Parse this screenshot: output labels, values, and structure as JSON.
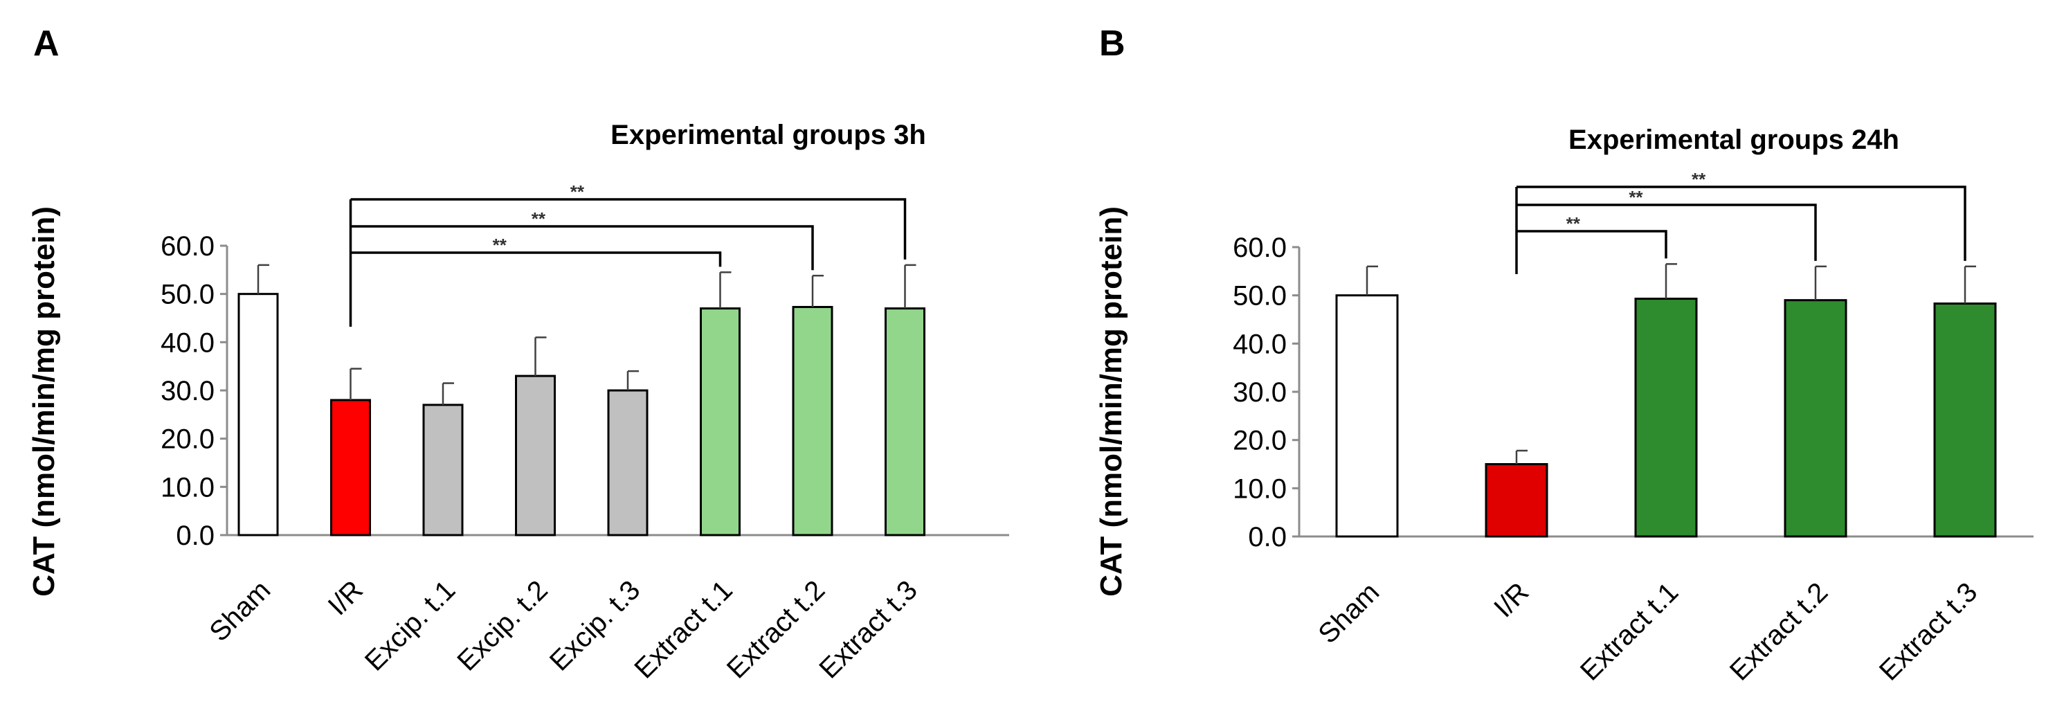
{
  "figure": {
    "panels": [
      {
        "letter": "A",
        "title": "Experimental groups 3h",
        "ylabel": "CAT (nmol/min/mg protein)",
        "yticks": [
          "0.0",
          "10.0",
          "20.0",
          "30.0",
          "40.0",
          "50.0",
          "60.0"
        ],
        "categories": [
          "Sham",
          "I/R",
          "Excip. t.1",
          "Excip. t.2",
          "Excip. t.3",
          "Extract t.1",
          "Extract t.2",
          "Extract t.3"
        ],
        "comparisons": [
          {
            "from": "I/R",
            "to": "Extract t.1",
            "label": "**"
          },
          {
            "from": "I/R",
            "to": "Extract t.2",
            "label": "**"
          },
          {
            "from": "I/R",
            "to": "Extract t.3",
            "label": "**"
          }
        ]
      },
      {
        "letter": "B",
        "title": "Experimental groups 24h",
        "ylabel": "CAT (nmol/min/mg protein)",
        "yticks": [
          "0.0",
          "10.0",
          "20.0",
          "30.0",
          "40.0",
          "50.0",
          "60.0"
        ],
        "categories": [
          "Sham",
          "I/R",
          "Extract t.1",
          "Extract t.2",
          "Extract t.3"
        ],
        "comparisons": [
          {
            "from": "I/R",
            "to": "Extract t.1",
            "label": "**"
          },
          {
            "from": "I/R",
            "to": "Extract t.2",
            "label": "**"
          },
          {
            "from": "I/R",
            "to": "Extract t.3",
            "label": "**"
          }
        ]
      }
    ]
  },
  "chart_data": [
    {
      "type": "bar",
      "title": "Experimental groups 3h",
      "xlabel": "",
      "ylabel": "CAT (nmol/min/mg protein)",
      "ylim": [
        0,
        60
      ],
      "grid": false,
      "categories": [
        "Sham",
        "I/R",
        "Excip. t.1",
        "Excip. t.2",
        "Excip. t.3",
        "Extract t.1",
        "Extract t.2",
        "Extract t.3"
      ],
      "values": [
        50.0,
        28.0,
        27.0,
        33.0,
        30.0,
        47.0,
        47.3,
        47.0
      ],
      "errors": [
        6.0,
        6.5,
        4.5,
        8.0,
        4.0,
        7.5,
        6.5,
        9.0
      ],
      "colors": [
        "#ffffff",
        "#ff0000",
        "#c0c0c0",
        "#c0c0c0",
        "#c0c0c0",
        "#92d68c",
        "#92d68c",
        "#92d68c"
      ],
      "annotations": [
        {
          "from": "I/R",
          "to": "Extract t.1",
          "label": "**"
        },
        {
          "from": "I/R",
          "to": "Extract t.2",
          "label": "**"
        },
        {
          "from": "I/R",
          "to": "Extract t.3",
          "label": "**"
        }
      ]
    },
    {
      "type": "bar",
      "title": "Experimental groups 24h",
      "xlabel": "",
      "ylabel": "CAT (nmol/min/mg protein)",
      "ylim": [
        0,
        60
      ],
      "grid": false,
      "categories": [
        "Sham",
        "I/R",
        "Extract t.1",
        "Extract t.2",
        "Extract t.3"
      ],
      "values": [
        50.0,
        15.0,
        49.3,
        49.0,
        48.3
      ],
      "errors": [
        6.0,
        2.8,
        7.2,
        7.0,
        7.7
      ],
      "colors": [
        "#ffffff",
        "#e00000",
        "#2e8b2e",
        "#2e8b2e",
        "#2e8b2e"
      ],
      "annotations": [
        {
          "from": "I/R",
          "to": "Extract t.1",
          "label": "**"
        },
        {
          "from": "I/R",
          "to": "Extract t.2",
          "label": "**"
        },
        {
          "from": "I/R",
          "to": "Extract t.3",
          "label": "**"
        }
      ]
    }
  ]
}
